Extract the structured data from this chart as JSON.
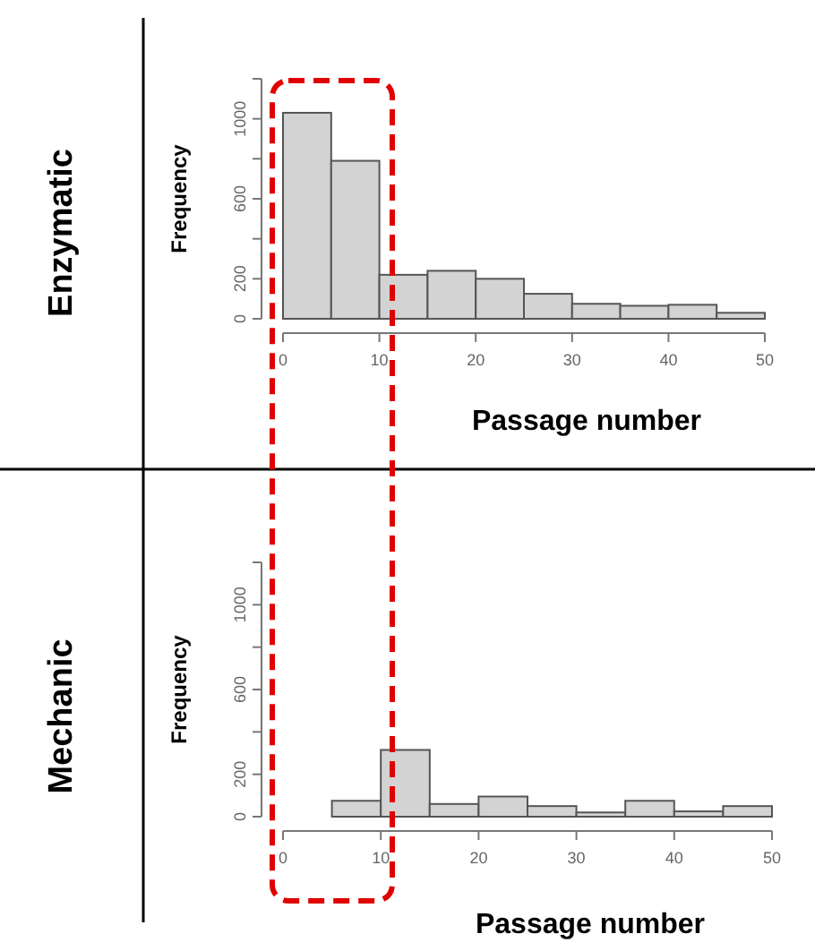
{
  "chart_data": [
    {
      "type": "histogram",
      "title": "Enzymatic",
      "xlabel": "Passage number",
      "ylabel": "Frequency",
      "bins": [
        0,
        5,
        10,
        15,
        20,
        25,
        30,
        35,
        40,
        45,
        50
      ],
      "values": [
        1030,
        790,
        220,
        240,
        200,
        125,
        75,
        65,
        70,
        30
      ],
      "color": "#d3d3d3",
      "xlim": [
        0,
        50
      ],
      "xticks": [
        0,
        10,
        20,
        30,
        40,
        50
      ],
      "ylim": [
        0,
        1200
      ],
      "yticks": [
        0,
        200,
        {
          "value": 400,
          "label": null
        },
        600,
        {
          "value": 800,
          "label": null
        },
        1000,
        {
          "value": 1200,
          "label": null
        }
      ]
    },
    {
      "type": "histogram",
      "title": "Mechanic",
      "xlabel": "Passage number",
      "ylabel": "Frequency",
      "bins": [
        0,
        5,
        10,
        15,
        20,
        25,
        30,
        35,
        40,
        45,
        50
      ],
      "values": [
        0,
        75,
        315,
        60,
        95,
        50,
        20,
        75,
        25,
        50
      ],
      "color": "#d3d3d3",
      "xlim": [
        0,
        50
      ],
      "xticks": [
        0,
        10,
        20,
        30,
        40,
        50
      ],
      "ylim": [
        0,
        1200
      ],
      "yticks": [
        0,
        200,
        {
          "value": 400,
          "label": null
        },
        600,
        {
          "value": 800,
          "label": null
        },
        1000,
        {
          "value": 1200,
          "label": null
        }
      ]
    }
  ]
}
